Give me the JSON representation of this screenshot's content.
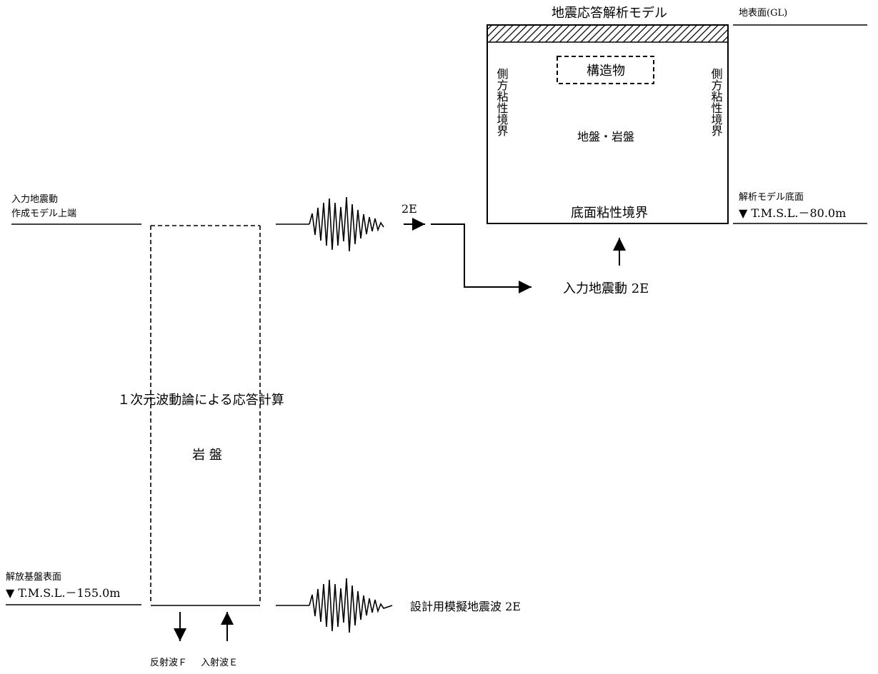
{
  "diagram": {
    "analysis_model": {
      "title": "地震応答解析モデル",
      "structure": "構造物",
      "ground": "地盤・岩盤",
      "side_boundary": "側方粘性境界",
      "bottom_boundary": "底面粘性境界"
    },
    "ground_surface": "地表面(GL)",
    "model_bottom": {
      "label": "解析モデル底面",
      "level": "▼ T.M.S.L.－80.0m"
    },
    "input_model_top": {
      "line1": "入力地震動",
      "line2": "作成モデル上端"
    },
    "base_surface": {
      "label": "解放基盤表面",
      "level": "▼ T.M.S.L.－155.0m"
    },
    "calc_label": "１次元波動論による応答計算",
    "rock_label": "岩 盤",
    "wave_2e": "2E",
    "input_motion": "入力地震動 2E",
    "design_wave": "設計用模擬地震波 2E",
    "reflected_wave": "反射波Ｆ",
    "incident_wave": "入射波Ｅ"
  },
  "colors": {
    "line": "#000000",
    "background": "#ffffff"
  }
}
